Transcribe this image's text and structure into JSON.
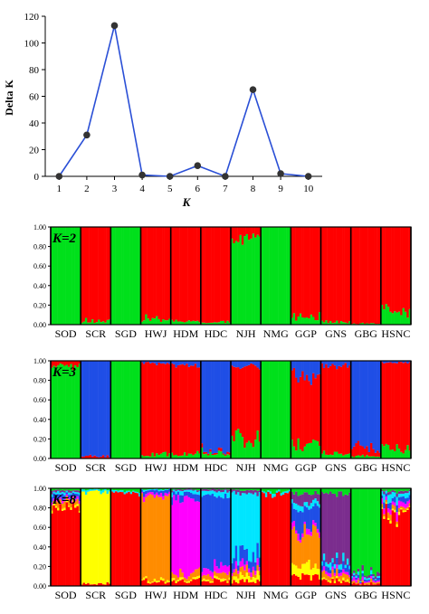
{
  "chart_data": [
    {
      "type": "line",
      "xlabel": "K",
      "ylabel": "Delta K",
      "x": [
        1,
        2,
        3,
        4,
        5,
        6,
        7,
        8,
        9,
        10
      ],
      "y": [
        0,
        31,
        113,
        1,
        0,
        8,
        0,
        65,
        2,
        0
      ],
      "xlim": [
        0.5,
        10.5
      ],
      "ylim": [
        0,
        120
      ],
      "yticks": [
        "0",
        "20",
        "40",
        "60",
        "80",
        "100",
        "120"
      ],
      "xticks": [
        "1",
        "2",
        "3",
        "4",
        "5",
        "6",
        "7",
        "8",
        "9",
        "10"
      ],
      "grid": false,
      "colors": {
        "line": "#2a4fd6",
        "marker": "#333333"
      }
    },
    {
      "type": "bar",
      "stacked": true,
      "label": "K=2",
      "ylim": [
        0,
        1
      ],
      "yticks": [
        "0.00",
        "0.20",
        "0.40",
        "0.60",
        "0.80",
        "1.00"
      ],
      "categories": [
        "SOD",
        "SCR",
        "SGD",
        "HWJ",
        "HDM",
        "HDC",
        "NJH",
        "NMG",
        "GGP",
        "GNS",
        "GBG",
        "HSNC"
      ],
      "series": [
        {
          "color": "#00e01b",
          "values": [
            1.0,
            0.03,
            1.0,
            0.05,
            0.03,
            0.02,
            0.9,
            1.0,
            0.08,
            0.02,
            0.01,
            0.15
          ]
        },
        {
          "color": "#ff0000",
          "values": [
            0.0,
            0.97,
            0.0,
            0.95,
            0.97,
            0.98,
            0.1,
            0.0,
            0.92,
            0.98,
            0.99,
            0.85
          ]
        }
      ]
    },
    {
      "type": "bar",
      "stacked": true,
      "label": "K=3",
      "ylim": [
        0,
        1
      ],
      "yticks": [
        "0.00",
        "0.20",
        "0.40",
        "0.60",
        "0.80",
        "1.00"
      ],
      "categories": [
        "SOD",
        "SCR",
        "SGD",
        "HWJ",
        "HDM",
        "HDC",
        "NJH",
        "NMG",
        "GGP",
        "GNS",
        "GBG",
        "HSNC"
      ],
      "series": [
        {
          "color": "#00e01b",
          "values": [
            0.95,
            0.0,
            1.0,
            0.03,
            0.05,
            0.05,
            0.2,
            1.0,
            0.15,
            0.05,
            0.02,
            0.1
          ]
        },
        {
          "color": "#ff0000",
          "values": [
            0.05,
            0.02,
            0.0,
            0.95,
            0.9,
            0.02,
            0.75,
            0.0,
            0.7,
            0.9,
            0.08,
            0.88
          ]
        },
        {
          "color": "#1f4ee6",
          "values": [
            0.0,
            0.98,
            0.0,
            0.02,
            0.05,
            0.93,
            0.05,
            0.0,
            0.15,
            0.05,
            0.9,
            0.02
          ]
        }
      ]
    },
    {
      "type": "bar",
      "stacked": true,
      "label": "K=8",
      "ylim": [
        0,
        1
      ],
      "yticks": [
        "0.00",
        "0.20",
        "0.40",
        "0.60",
        "0.80",
        "1.00"
      ],
      "categories": [
        "SOD",
        "SCR",
        "SGD",
        "HWJ",
        "HDM",
        "HDC",
        "NJH",
        "NMG",
        "GGP",
        "GNS",
        "GBG",
        "HSNC"
      ],
      "series": [
        {
          "color": "#ff0000",
          "values": [
            0.8,
            0.02,
            0.95,
            0.05,
            0.05,
            0.05,
            0.05,
            0.95,
            0.1,
            0.05,
            0.02,
            0.75
          ]
        },
        {
          "color": "#ffff00",
          "values": [
            0.02,
            0.95,
            0.0,
            0.02,
            0.02,
            0.02,
            0.05,
            0.0,
            0.1,
            0.02,
            0.0,
            0.02
          ]
        },
        {
          "color": "#ff8c00",
          "values": [
            0.05,
            0.0,
            0.0,
            0.85,
            0.05,
            0.05,
            0.05,
            0.0,
            0.35,
            0.05,
            0.02,
            0.03
          ]
        },
        {
          "color": "#ff00ff",
          "values": [
            0.03,
            0.0,
            0.0,
            0.03,
            0.78,
            0.08,
            0.05,
            0.0,
            0.05,
            0.03,
            0.02,
            0.05
          ]
        },
        {
          "color": "#1f4ee6",
          "values": [
            0.04,
            0.0,
            0.0,
            0.03,
            0.05,
            0.72,
            0.1,
            0.0,
            0.2,
            0.05,
            0.02,
            0.05
          ]
        },
        {
          "color": "#00e5ff",
          "values": [
            0.02,
            0.02,
            0.02,
            0.01,
            0.03,
            0.05,
            0.65,
            0.02,
            0.05,
            0.05,
            0.02,
            0.05
          ]
        },
        {
          "color": "#7b2d8e",
          "values": [
            0.02,
            0.0,
            0.0,
            0.0,
            0.01,
            0.02,
            0.03,
            0.0,
            0.1,
            0.7,
            0.03,
            0.02
          ]
        },
        {
          "color": "#00e01b",
          "values": [
            0.02,
            0.01,
            0.03,
            0.01,
            0.01,
            0.01,
            0.02,
            0.03,
            0.05,
            0.05,
            0.87,
            0.03
          ]
        }
      ]
    }
  ]
}
